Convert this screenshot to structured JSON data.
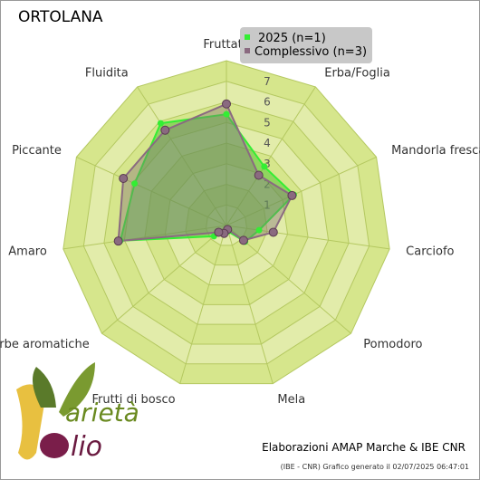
{
  "chart_data": {
    "type": "radar",
    "title": "ORTOLANA",
    "categories": [
      "Fruttato",
      "Erba/Foglia",
      "Mandorla fresca",
      "Carciofo",
      "Pomodoro",
      "Mela",
      "Frutti di bosco",
      "Erbe aromatiche",
      "Amaro",
      "Piccante",
      "Fluidita"
    ],
    "series": [
      {
        "name": "2025 (n=1)",
        "color": "#33ee33",
        "values": [
          5.4,
          3.4,
          3.6,
          1.6,
          1.2,
          0.3,
          0.4,
          0.8,
          5.2,
          4.9,
          5.9
        ]
      },
      {
        "name": "Complessivo (n=3)",
        "color": "#8a6a80",
        "values": [
          5.9,
          2.9,
          3.5,
          2.3,
          1.1,
          0.2,
          0.4,
          0.5,
          5.3,
          5.5,
          5.5
        ]
      }
    ],
    "rlim": [
      0,
      8
    ],
    "rticks": [
      1,
      2,
      3,
      4,
      5,
      6,
      7
    ],
    "credits": "Elaborazioni AMAP Marche & IBE CNR",
    "footnote": "(IBE - CNR) Grafico generato il 02/07/2025 06:47:01",
    "logo_text": [
      "arietà",
      "lio"
    ]
  }
}
